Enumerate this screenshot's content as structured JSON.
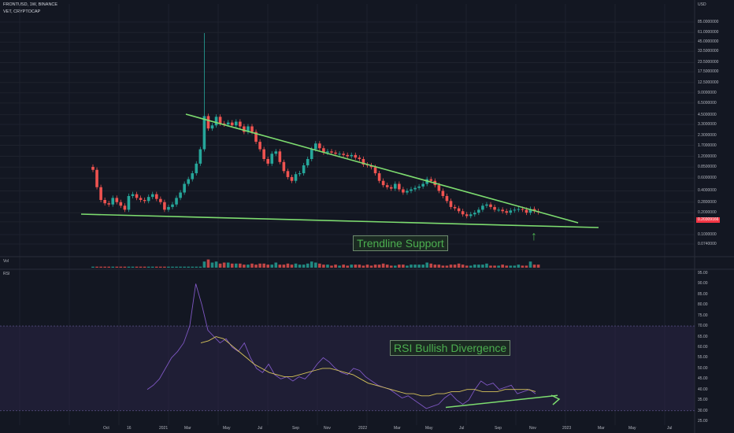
{
  "header": {
    "symbol_line": "FRONTUSD, 1W, BINANCE",
    "sub_line": "VET, CRYPTOCAP",
    "currency": "USD",
    "vol_label": "Vol",
    "rsi_label": "RSI"
  },
  "colors": {
    "background": "#131722",
    "up": "#26a69a",
    "down": "#ef5350",
    "trendline": "#7ddc6f",
    "rsi_line": "#7e57c2",
    "rsi_ma": "#d6c35a",
    "rsi_band": "#2a2446"
  },
  "annotations": {
    "trendline_support": "Trendline Support",
    "rsi_divergence": "RSI Bullish Divergence",
    "arrow": "↑"
  },
  "chart_data": [
    {
      "type": "candlestick",
      "title": "FRONTUSD, 1W, BINANCE",
      "y_scale": "log",
      "y_ticks": [
        "85.0000000",
        "61.0000000",
        "45.0000000",
        "33.5000000",
        "23.5000000",
        "17.5000000",
        "12.5000000",
        "9.0000000",
        "6.5000000",
        "4.5000000",
        "3.3000000",
        "2.3000000",
        "1.7000000",
        "1.2000000",
        "0.8500000",
        "0.6000000",
        "0.4000000",
        "0.2800000",
        "0.2000000",
        "0.1500000",
        "0.1000000",
        "0.0740000"
      ],
      "x_ticks": [
        "Oct",
        "16",
        "2021",
        "Mar",
        "May",
        "Jul",
        "Sep",
        "Nov",
        "2022",
        "Mar",
        "May",
        "Jul",
        "Sep",
        "Nov",
        "2023",
        "Mar",
        "May",
        "Jul"
      ],
      "last_price": "0.20309166",
      "series_close": [
        0.78,
        0.45,
        0.3,
        0.27,
        0.26,
        0.32,
        0.28,
        0.25,
        0.22,
        0.34,
        0.36,
        0.32,
        0.3,
        0.29,
        0.33,
        0.36,
        0.31,
        0.28,
        0.22,
        0.24,
        0.26,
        0.32,
        0.38,
        0.5,
        0.58,
        0.7,
        0.95,
        1.5,
        4.3,
        2.9,
        3.2,
        4.2,
        3.4,
        3.3,
        3.5,
        3.2,
        3.6,
        3.1,
        2.6,
        3.1,
        2.6,
        1.9,
        1.5,
        1.1,
        0.95,
        1.3,
        1.4,
        1.0,
        0.75,
        0.62,
        0.55,
        0.68,
        0.7,
        0.9,
        1.1,
        1.5,
        1.8,
        1.55,
        1.35,
        1.4,
        1.35,
        1.3,
        1.3,
        1.25,
        1.2,
        1.25,
        1.15,
        1.1,
        0.92,
        0.9,
        0.85,
        0.7,
        0.55,
        0.48,
        0.45,
        0.43,
        0.5,
        0.42,
        0.38,
        0.4,
        0.42,
        0.44,
        0.46,
        0.5,
        0.58,
        0.55,
        0.48,
        0.4,
        0.34,
        0.29,
        0.24,
        0.23,
        0.21,
        0.19,
        0.18,
        0.19,
        0.2,
        0.22,
        0.25,
        0.26,
        0.24,
        0.22,
        0.22,
        0.21,
        0.2,
        0.215,
        0.22,
        0.225,
        0.22,
        0.2,
        0.225,
        0.21,
        0.203
      ],
      "trendlines": [
        {
          "name": "resistance",
          "from": [
            4.5,
            "2021-02"
          ],
          "to": [
            0.19,
            "2022-12"
          ]
        },
        {
          "name": "support",
          "from": [
            0.23,
            "2020-09"
          ],
          "to": [
            0.17,
            "2023-02"
          ]
        }
      ]
    },
    {
      "type": "bar",
      "title": "Vol",
      "values": [
        1,
        1,
        1,
        1,
        1,
        1,
        1,
        1,
        1,
        1,
        1,
        1,
        1,
        1,
        1,
        1,
        1,
        1,
        1,
        1,
        1,
        1,
        1,
        1,
        1,
        1,
        1,
        1,
        6,
        8,
        5,
        6,
        4,
        5,
        5,
        4,
        4,
        4,
        3,
        3,
        4,
        3,
        4,
        4,
        3,
        3,
        5,
        3,
        3,
        4,
        3,
        4,
        3,
        3,
        4,
        6,
        5,
        4,
        3,
        3,
        2,
        3,
        2,
        3,
        2,
        3,
        3,
        3,
        2,
        3,
        2,
        3,
        3,
        4,
        3,
        2,
        2,
        3,
        3,
        2,
        3,
        3,
        3,
        3,
        5,
        4,
        3,
        3,
        2,
        2,
        3,
        3,
        4,
        3,
        2,
        2,
        3,
        3,
        3,
        4,
        2,
        2,
        2,
        3,
        2,
        2,
        2,
        3,
        2,
        2,
        6,
        3,
        3
      ]
    },
    {
      "type": "line",
      "title": "RSI",
      "y_ticks": [
        "95.00",
        "90.00",
        "85.00",
        "80.00",
        "75.00",
        "70.00",
        "65.00",
        "60.00",
        "55.00",
        "50.00",
        "45.00",
        "40.00",
        "35.00",
        "30.00",
        "25.00"
      ],
      "band": [
        30,
        70
      ],
      "series": [
        {
          "values": [
            40,
            42,
            45,
            50,
            55,
            58,
            62,
            70,
            90,
            80,
            68,
            65,
            62,
            64,
            60,
            58,
            62,
            55,
            50,
            48,
            52,
            47,
            45,
            46,
            44,
            46,
            45,
            48,
            52,
            55,
            53,
            50,
            48,
            47,
            50,
            49,
            46,
            44,
            42,
            41,
            40,
            38,
            36,
            37,
            35,
            33,
            31,
            32,
            33,
            36,
            38,
            35,
            33,
            35,
            40,
            44,
            42,
            43,
            40,
            41,
            42,
            38,
            39,
            40,
            38
          ]
        },
        {
          "values": [
            62,
            63,
            65,
            64,
            61,
            58,
            55,
            52,
            50,
            48,
            47,
            46,
            46,
            47,
            48,
            49,
            50,
            50,
            49,
            48,
            47,
            45,
            43,
            42,
            41,
            40,
            39,
            38,
            38,
            37,
            37,
            38,
            38,
            39,
            39,
            40,
            40,
            39,
            39,
            39,
            40,
            40,
            40,
            40,
            39
          ]
        }
      ],
      "trendline": {
        "from": [
          32,
          "2022-05"
        ],
        "to": [
          38,
          "2023-02"
        ]
      }
    }
  ]
}
